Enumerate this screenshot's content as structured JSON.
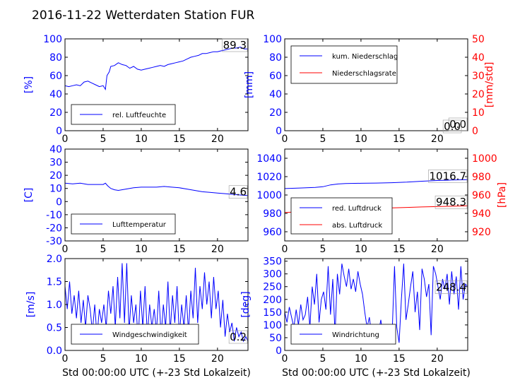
{
  "title": "2016-11-22 Wetterdaten Station FUR",
  "colors": {
    "primary": "#0000ff",
    "secondary": "#ff0000",
    "axis": "#000000"
  },
  "chart_data": [
    {
      "id": "humidity",
      "type": "line",
      "ylabel": "[%]",
      "ylim": [
        0,
        100
      ],
      "yticks": [
        0,
        20,
        40,
        60,
        80,
        100
      ],
      "xlim": [
        0,
        24
      ],
      "xticks": [
        0,
        5,
        10,
        15,
        20
      ],
      "legend_position": "lower-left",
      "last_value_label": "89.3",
      "series": [
        {
          "name": "rel. Luftfeuchte",
          "color": "#0000ff",
          "axis": "left",
          "x": [
            0,
            0.5,
            1,
            1.5,
            2,
            2.5,
            3,
            3.5,
            4,
            4.5,
            5,
            5.3,
            5.5,
            5.8,
            6,
            6.5,
            7,
            7.5,
            8,
            8.5,
            9,
            9.5,
            10,
            10.5,
            11,
            11.5,
            12,
            12.5,
            13,
            13.5,
            14,
            14.5,
            15,
            15.5,
            16,
            16.5,
            17,
            17.5,
            18,
            18.5,
            19,
            19.5,
            20,
            20.5,
            21,
            21.5,
            22,
            22.5,
            23,
            23.5,
            24
          ],
          "y": [
            49,
            48,
            49,
            50,
            49,
            53,
            54,
            52,
            50,
            48,
            49,
            45,
            60,
            64,
            70,
            71,
            74,
            72,
            71,
            68,
            70,
            67,
            66,
            67,
            68,
            69,
            70,
            71,
            70,
            72,
            73,
            74,
            75,
            76,
            78,
            80,
            81,
            82,
            84,
            84,
            85,
            86,
            86,
            87,
            88,
            89,
            90,
            90,
            91,
            89,
            89
          ]
        }
      ]
    },
    {
      "id": "precipitation",
      "type": "line",
      "ylabel": "[mm]",
      "ylabel_right": "[mm/std]",
      "ylim": [
        0,
        100
      ],
      "yticks": [
        0,
        20,
        40,
        60,
        80,
        100
      ],
      "ylim_right": [
        0,
        50
      ],
      "yticks_right": [
        0,
        10,
        20,
        30,
        40,
        50
      ],
      "xlim": [
        0,
        24
      ],
      "xticks": [
        0,
        5,
        10,
        15,
        20
      ],
      "legend_position": "upper-left",
      "last_value_label": "0.0",
      "last_value_label_2": "0.0",
      "series": [
        {
          "name": "kum. Niederschlag",
          "color": "#0000ff",
          "axis": "left",
          "x": [
            0,
            24
          ],
          "y": [
            0,
            0
          ]
        },
        {
          "name": "Niederschlagsrate",
          "color": "#ff0000",
          "axis": "right",
          "x": [
            0,
            24
          ],
          "y": [
            0,
            0
          ]
        }
      ]
    },
    {
      "id": "temperature",
      "type": "line",
      "ylabel": "[C]",
      "ylim": [
        -30,
        40
      ],
      "yticks": [
        -30,
        -20,
        -10,
        0,
        10,
        20,
        30,
        40
      ],
      "xlim": [
        0,
        24
      ],
      "xticks": [
        0,
        5,
        10,
        15,
        20
      ],
      "legend_position": "lower-left",
      "last_value_label": "4.6",
      "series": [
        {
          "name": "Lufttemperatur",
          "color": "#0000ff",
          "axis": "left",
          "x": [
            0,
            1,
            2,
            3,
            4,
            5,
            5.3,
            5.6,
            6,
            6.5,
            7,
            8,
            9,
            10,
            11,
            12,
            13,
            14,
            15,
            16,
            17,
            18,
            19,
            20,
            21,
            22,
            23,
            24
          ],
          "y": [
            14,
            13.5,
            14,
            13,
            13,
            13,
            14,
            12,
            10,
            9,
            8.5,
            9.5,
            10.5,
            11,
            11,
            11,
            11.5,
            11,
            10.5,
            9.5,
            8.5,
            7.5,
            7,
            6.5,
            6,
            5.5,
            5,
            4.6
          ]
        }
      ]
    },
    {
      "id": "pressure",
      "type": "line",
      "ylabel": "",
      "ylabel_right": "[hPa]",
      "ylim": [
        950,
        1050
      ],
      "yticks": [
        960,
        980,
        1000,
        1020,
        1040
      ],
      "ylim_right": [
        910,
        1010
      ],
      "yticks_right": [
        920,
        940,
        960,
        980,
        1000
      ],
      "xlim": [
        0,
        24
      ],
      "xticks": [
        0,
        5,
        10,
        15,
        20
      ],
      "legend_position": "lower-left",
      "last_value_label": "1016.7",
      "last_value_label_2": "948.3",
      "series": [
        {
          "name": "red. Luftdruck",
          "color": "#0000ff",
          "axis": "left",
          "x": [
            0,
            2,
            4,
            5,
            6,
            7,
            8,
            10,
            12,
            14,
            16,
            18,
            20,
            22,
            24
          ],
          "y": [
            1007,
            1007.6,
            1008.3,
            1009,
            1011,
            1012,
            1012.5,
            1012.8,
            1013,
            1013.4,
            1014,
            1015,
            1015.8,
            1016.3,
            1016.7
          ]
        },
        {
          "name": "abs. Luftdruck",
          "color": "#ff0000",
          "axis": "right",
          "x": [
            0,
            2,
            4,
            6,
            8,
            10,
            12,
            14,
            16,
            18,
            20,
            22,
            24
          ],
          "y": [
            941,
            941.8,
            942.6,
            943.4,
            944.2,
            944.8,
            945.4,
            946,
            946.5,
            947,
            947.4,
            947.8,
            948.3
          ]
        }
      ]
    },
    {
      "id": "windspeed",
      "type": "line",
      "ylabel": "[m/s]",
      "xlabel": "Std 00:00:00 UTC (+-23 Std Lokalzeit)",
      "ylim": [
        0,
        2
      ],
      "yticks": [
        "0.0",
        "0.5",
        "1.0",
        "1.5",
        "2.0"
      ],
      "xlim": [
        0,
        24
      ],
      "xticks": [
        0,
        5,
        10,
        15,
        20
      ],
      "legend_position": "lower-left",
      "last_value_label": "0.2",
      "series": [
        {
          "name": "Windgeschwindigkeit",
          "color": "#0000ff",
          "axis": "left",
          "x": [
            0,
            0.3,
            0.6,
            0.9,
            1.2,
            1.5,
            1.8,
            2.1,
            2.4,
            2.7,
            3,
            3.3,
            3.6,
            3.9,
            4.2,
            4.5,
            4.8,
            5.1,
            5.4,
            5.7,
            6,
            6.3,
            6.6,
            6.9,
            7.2,
            7.5,
            7.8,
            8.1,
            8.4,
            8.7,
            9,
            9.3,
            9.6,
            9.9,
            10.2,
            10.5,
            10.8,
            11.1,
            11.4,
            11.7,
            12,
            12.3,
            12.6,
            12.9,
            13.2,
            13.5,
            13.8,
            14.1,
            14.4,
            14.7,
            15,
            15.3,
            15.6,
            15.9,
            16.2,
            16.5,
            16.8,
            17.1,
            17.4,
            17.7,
            18,
            18.3,
            18.6,
            18.9,
            19.2,
            19.5,
            19.8,
            20.1,
            20.4,
            20.7,
            21,
            21.3,
            21.6,
            21.9,
            22.2,
            22.5,
            22.8,
            23.1,
            23.4,
            23.7,
            24
          ],
          "y": [
            1.4,
            0.9,
            1.5,
            0.8,
            1.2,
            0.7,
            1.3,
            0.6,
            1.1,
            0.5,
            1.2,
            0.9,
            0.4,
            1.0,
            0.3,
            0.9,
            0.6,
            1.0,
            0.5,
            1.3,
            0.8,
            1.4,
            0.5,
            1.6,
            0.7,
            1.9,
            0.6,
            1.9,
            0.4,
            1.2,
            0.6,
            1.0,
            0.2,
            1.3,
            0.5,
            1.4,
            0.3,
            1.0,
            0.5,
            0.9,
            0.4,
            1.3,
            0.3,
            1.0,
            0.5,
            1.5,
            0.4,
            1.2,
            0.6,
            1.4,
            0.3,
            1.0,
            0.5,
            1.2,
            0.4,
            1.3,
            0.7,
            1.8,
            0.6,
            1.4,
            0.9,
            1.7,
            1.0,
            1.5,
            0.7,
            1.6,
            0.9,
            1.3,
            0.5,
            1.1,
            0.3,
            0.8,
            0.4,
            0.6,
            0.2,
            0.5,
            0.3,
            0.4,
            0.2,
            0.3,
            0.2
          ]
        }
      ]
    },
    {
      "id": "winddirection",
      "type": "line",
      "ylabel": "[deg]",
      "xlabel": "Std 00:00:00 UTC (+-23 Std Lokalzeit)",
      "ylim": [
        0,
        360
      ],
      "yticks": [
        0,
        50,
        100,
        150,
        200,
        250,
        300,
        350
      ],
      "xlim": [
        0,
        24
      ],
      "xticks": [
        0,
        5,
        10,
        15,
        20
      ],
      "legend_position": "lower-left",
      "last_value_label": "248.4",
      "series": [
        {
          "name": "Windrichtung",
          "color": "#0000ff",
          "axis": "left",
          "x": [
            0,
            0.3,
            0.6,
            0.9,
            1.2,
            1.5,
            1.8,
            2.1,
            2.4,
            2.7,
            3,
            3.3,
            3.6,
            3.9,
            4.2,
            4.5,
            4.8,
            5.1,
            5.4,
            5.7,
            6,
            6.3,
            6.6,
            6.9,
            7.2,
            7.5,
            7.8,
            8.1,
            8.4,
            8.7,
            9,
            9.3,
            9.6,
            9.9,
            10.2,
            10.5,
            10.8,
            11.1,
            11.4,
            11.7,
            12,
            12.3,
            12.6,
            12.9,
            13.2,
            13.5,
            13.8,
            14.1,
            14.4,
            14.7,
            15,
            15.3,
            15.6,
            15.9,
            16.2,
            16.5,
            16.8,
            17.1,
            17.4,
            17.7,
            18,
            18.3,
            18.6,
            18.9,
            19.2,
            19.5,
            19.8,
            20.1,
            20.4,
            20.7,
            21,
            21.3,
            21.6,
            21.9,
            22.2,
            22.5,
            22.8,
            23.1,
            23.4,
            23.7,
            24
          ],
          "y": [
            150,
            110,
            170,
            130,
            90,
            160,
            100,
            180,
            120,
            140,
            210,
            90,
            250,
            180,
            300,
            110,
            200,
            230,
            160,
            330,
            140,
            280,
            60,
            300,
            220,
            340,
            290,
            250,
            320,
            240,
            280,
            230,
            310,
            260,
            220,
            150,
            90,
            130,
            60,
            40,
            100,
            70,
            120,
            50,
            30,
            90,
            40,
            80,
            330,
            90,
            30,
            200,
            340,
            120,
            180,
            250,
            310,
            150,
            230,
            80,
            320,
            280,
            210,
            260,
            60,
            330,
            300,
            250,
            200,
            280,
            240,
            300,
            180,
            310,
            220,
            290,
            160,
            330,
            200,
            260,
            248
          ]
        }
      ]
    }
  ]
}
